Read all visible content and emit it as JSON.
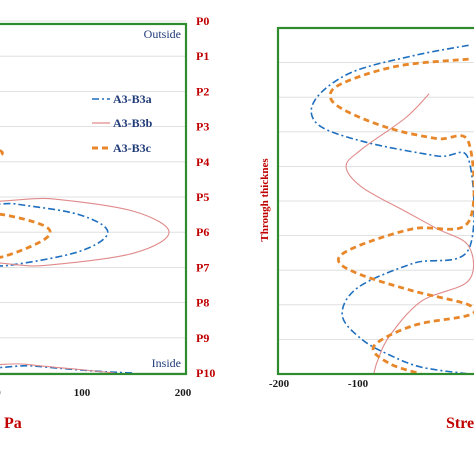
{
  "chart_data": [
    {
      "type": "line",
      "xlabel": "Pa",
      "xticks": [
        "0",
        "100",
        "200"
      ],
      "ylabels": [
        "P0",
        "P1",
        "P2",
        "P3",
        "P4",
        "P5",
        "P6",
        "P7",
        "P8",
        "P9",
        "P10"
      ],
      "annotations": {
        "top": "Outside",
        "bottom": "Inside"
      },
      "xlim": [
        -38,
        200
      ],
      "grid": true,
      "legend": "right",
      "series": [
        {
          "name": "A3-B3a",
          "color": "#1f6fbf",
          "style": "dashdot",
          "points": [
            [
              -38,
              2.4
            ],
            [
              -38,
              5.0
            ],
            [
              20,
              5.2
            ],
            [
              90,
              5.5
            ],
            [
              122,
              6.0
            ],
            [
              90,
              6.55
            ],
            [
              10,
              6.95
            ],
            [
              -38,
              7.0
            ],
            [
              -38,
              9.6
            ],
            [
              40,
              9.8
            ],
            [
              110,
              9.95
            ],
            [
              150,
              10.0
            ]
          ]
        },
        {
          "name": "A3-B3b",
          "color": "#e08a8a",
          "style": "solid",
          "points": [
            [
              -38,
              2.3
            ],
            [
              -38,
              4.9
            ],
            [
              60,
              5.05
            ],
            [
              150,
              5.4
            ],
            [
              190,
              6.0
            ],
            [
              150,
              6.6
            ],
            [
              50,
              6.95
            ],
            [
              -38,
              7.05
            ],
            [
              -38,
              9.5
            ],
            [
              30,
              9.75
            ],
            [
              90,
              9.9
            ],
            [
              130,
              10.0
            ]
          ]
        },
        {
          "name": "A3-B3c",
          "color": "#e8872a",
          "style": "dashed",
          "points": [
            [
              -38,
              0.15
            ],
            [
              -20,
              0.0
            ],
            [
              -38,
              -0.2
            ],
            [
              -38,
              3.2
            ],
            [
              -10,
              3.55
            ],
            [
              5,
              3.75
            ],
            [
              -10,
              3.95
            ],
            [
              -38,
              4.1
            ],
            [
              -38,
              5.4
            ],
            [
              5,
              5.5
            ],
            [
              45,
              5.75
            ],
            [
              58,
              6.0
            ],
            [
              45,
              6.3
            ],
            [
              5,
              6.7
            ],
            [
              -38,
              6.9
            ],
            [
              -38,
              9.2
            ],
            [
              -10,
              9.3
            ],
            [
              -38,
              9.45
            ]
          ]
        }
      ]
    },
    {
      "type": "line",
      "xlabel": "Stre",
      "ylabel": "Through thicknes",
      "xticks": [
        "-200",
        "-100"
      ],
      "xlim": [
        -210,
        60
      ],
      "grid": true,
      "series": [
        {
          "name": "A3-B3a",
          "color": "#1f6fbf",
          "style": "dashdot",
          "points": [
            [
              40,
              0.5
            ],
            [
              -30,
              0.8
            ],
            [
              -110,
              1.3
            ],
            [
              -155,
              2.1
            ],
            [
              -150,
              2.8
            ],
            [
              -90,
              3.3
            ],
            [
              0,
              3.7
            ],
            [
              40,
              3.8
            ],
            [
              40,
              6.4
            ],
            [
              -30,
              6.8
            ],
            [
              -100,
              7.5
            ],
            [
              -120,
              8.3
            ],
            [
              -95,
              9.0
            ],
            [
              -60,
              9.45
            ],
            [
              -20,
              9.8
            ],
            [
              40,
              10.0
            ]
          ]
        },
        {
          "name": "A3-B3b",
          "color": "#e08a8a",
          "style": "solid",
          "points": [
            [
              -10,
              1.9
            ],
            [
              -40,
              2.6
            ],
            [
              -95,
              3.5
            ],
            [
              -115,
              4.0
            ],
            [
              -95,
              4.6
            ],
            [
              -40,
              5.3
            ],
            [
              0,
              5.8
            ],
            [
              40,
              6.3
            ],
            [
              40,
              7.3
            ],
            [
              -20,
              7.9
            ],
            [
              -60,
              8.9
            ],
            [
              -75,
              9.6
            ],
            [
              -80,
              10.0
            ]
          ]
        },
        {
          "name": "A3-B3c",
          "color": "#e8872a",
          "style": "dashed",
          "points": [
            [
              40,
              0.9
            ],
            [
              -50,
              1.1
            ],
            [
              -120,
              1.6
            ],
            [
              -135,
              2.0
            ],
            [
              -115,
              2.4
            ],
            [
              -60,
              2.9
            ],
            [
              0,
              3.2
            ],
            [
              40,
              3.3
            ],
            [
              40,
              5.6
            ],
            [
              -30,
              5.8
            ],
            [
              -100,
              6.3
            ],
            [
              -125,
              6.7
            ],
            [
              -100,
              7.1
            ],
            [
              -30,
              7.6
            ],
            [
              40,
              8.0
            ],
            [
              40,
              8.3
            ],
            [
              -30,
              8.6
            ],
            [
              -80,
              9.2
            ],
            [
              -60,
              9.7
            ],
            [
              -20,
              10.0
            ]
          ]
        }
      ]
    }
  ]
}
